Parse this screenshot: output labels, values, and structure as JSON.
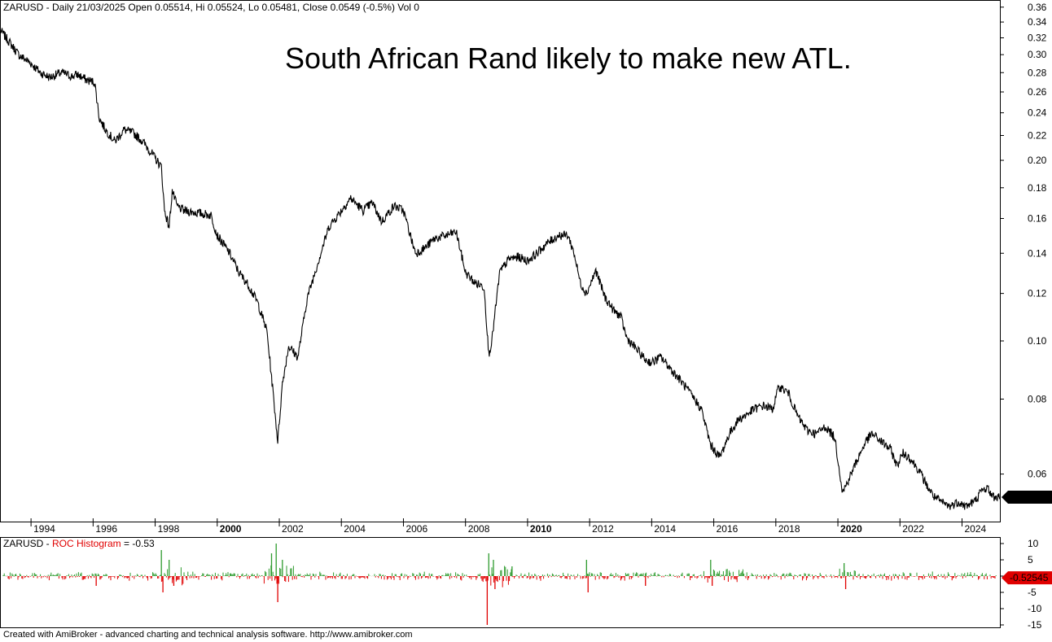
{
  "chart_data": [
    {
      "type": "line",
      "header": {
        "symbol": "ZARUSD",
        "text": " - Daily 21/03/2025 Open 0.05514, Hi 0.05524, Lo 0.05481, Close 0.0549 (-0.5%) Vol 0"
      },
      "annotation": "South African Rand likely to make new ATL.",
      "y_scale": "log",
      "ylim": [
        0.05,
        0.37
      ],
      "xlim": [
        1993.0,
        2025.22
      ],
      "y_ticks": [
        "0.36",
        "0.34",
        "0.32",
        "0.30",
        "0.28",
        "0.26",
        "0.24",
        "0.22",
        "0.20",
        "0.18",
        "0.16",
        "0.14",
        "0.12",
        "0.10",
        "0.08",
        "0.06"
      ],
      "x_ticks": [
        "1994",
        "1996",
        "1998",
        "2000",
        "2002",
        "2004",
        "2006",
        "2008",
        "2010",
        "2012",
        "2014",
        "2016",
        "2018",
        "2020",
        "2022",
        "2024"
      ],
      "x_ticks_bold": [
        "2000",
        "2010",
        "2020"
      ],
      "last_value_label": "0.0549",
      "series": [
        {
          "x": [
            1993.0,
            1993.3,
            1993.6,
            1994.0,
            1994.3,
            1994.6,
            1995.0,
            1995.3,
            1995.5,
            1995.8,
            1996.05,
            1996.2,
            1996.4,
            1996.7,
            1997.0,
            1997.3,
            1997.6,
            1997.9,
            1998.2,
            1998.3,
            1998.45,
            1998.55,
            1998.7,
            1998.9,
            1999.2,
            1999.5,
            1999.8,
            2000.0,
            2000.4,
            2000.7,
            2001.0,
            2001.3,
            2001.6,
            2001.8,
            2001.95,
            2002.1,
            2002.3,
            2002.6,
            2002.9,
            2003.3,
            2003.6,
            2004.0,
            2004.3,
            2004.7,
            2005.0,
            2005.3,
            2005.7,
            2006.0,
            2006.3,
            2006.4,
            2006.7,
            2007.0,
            2007.4,
            2007.7,
            2008.0,
            2008.3,
            2008.6,
            2008.75,
            2008.85,
            2009.1,
            2009.4,
            2009.7,
            2010.0,
            2010.3,
            2010.6,
            2011.0,
            2011.3,
            2011.5,
            2011.7,
            2011.9,
            2012.2,
            2012.5,
            2012.8,
            2013.0,
            2013.2,
            2013.5,
            2013.8,
            2014.0,
            2014.3,
            2014.6,
            2015.0,
            2015.3,
            2015.6,
            2015.9,
            2016.2,
            2016.5,
            2016.8,
            2017.0,
            2017.3,
            2017.6,
            2017.9,
            2018.1,
            2018.4,
            2018.7,
            2019.0,
            2019.3,
            2019.6,
            2019.9,
            2020.15,
            2020.3,
            2020.6,
            2020.9,
            2021.1,
            2021.4,
            2021.7,
            2021.9,
            2022.1,
            2022.3,
            2022.6,
            2022.9,
            2023.1,
            2023.3,
            2023.6,
            2023.9,
            2024.1,
            2024.4,
            2024.6,
            2024.8,
            2025.0,
            2025.22
          ],
          "y": [
            0.33,
            0.315,
            0.3,
            0.29,
            0.28,
            0.275,
            0.28,
            0.276,
            0.278,
            0.272,
            0.27,
            0.235,
            0.225,
            0.215,
            0.225,
            0.222,
            0.215,
            0.205,
            0.195,
            0.165,
            0.155,
            0.178,
            0.168,
            0.165,
            0.164,
            0.163,
            0.162,
            0.15,
            0.14,
            0.13,
            0.124,
            0.116,
            0.104,
            0.082,
            0.068,
            0.085,
            0.098,
            0.094,
            0.118,
            0.138,
            0.155,
            0.165,
            0.173,
            0.165,
            0.17,
            0.158,
            0.168,
            0.165,
            0.145,
            0.14,
            0.143,
            0.148,
            0.15,
            0.152,
            0.13,
            0.125,
            0.123,
            0.095,
            0.1,
            0.13,
            0.137,
            0.138,
            0.136,
            0.14,
            0.145,
            0.15,
            0.15,
            0.14,
            0.125,
            0.12,
            0.131,
            0.118,
            0.112,
            0.11,
            0.101,
            0.097,
            0.093,
            0.092,
            0.094,
            0.09,
            0.085,
            0.081,
            0.077,
            0.067,
            0.064,
            0.07,
            0.074,
            0.075,
            0.077,
            0.078,
            0.077,
            0.084,
            0.082,
            0.075,
            0.071,
            0.07,
            0.072,
            0.069,
            0.056,
            0.058,
            0.063,
            0.068,
            0.07,
            0.068,
            0.066,
            0.062,
            0.065,
            0.064,
            0.061,
            0.057,
            0.055,
            0.054,
            0.053,
            0.054,
            0.053,
            0.054,
            0.056,
            0.057,
            0.055,
            0.0549
          ]
        }
      ]
    },
    {
      "type": "bar",
      "header": {
        "symbol": "ZARUSD",
        "indicator": "ROC Histogram",
        "value": " = -0.53"
      },
      "ylim": [
        -16,
        12
      ],
      "y_ticks": [
        "10",
        "5",
        "0",
        "-5",
        "-10",
        "-15"
      ],
      "last_value_label": "-0.52545",
      "colors": {
        "positive": "#2e9b2e",
        "negative": "#e00000",
        "indicator_label": "#e00000"
      },
      "spikes": [
        {
          "x": 1998.2,
          "value": 8
        },
        {
          "x": 1998.25,
          "value": -5
        },
        {
          "x": 1998.45,
          "value": 5
        },
        {
          "x": 1998.6,
          "value": -3
        },
        {
          "x": 2001.75,
          "value": 7
        },
        {
          "x": 2001.9,
          "value": 10
        },
        {
          "x": 2001.95,
          "value": -8
        },
        {
          "x": 2002.1,
          "value": 5
        },
        {
          "x": 2008.7,
          "value": -15
        },
        {
          "x": 2008.75,
          "value": 7
        },
        {
          "x": 2008.9,
          "value": 5
        },
        {
          "x": 2008.95,
          "value": -4
        },
        {
          "x": 2011.9,
          "value": 5
        },
        {
          "x": 2011.95,
          "value": -5
        },
        {
          "x": 2015.9,
          "value": 5
        },
        {
          "x": 2015.95,
          "value": -3
        },
        {
          "x": 2020.2,
          "value": 4
        },
        {
          "x": 2020.25,
          "value": -4
        },
        {
          "x": 2009.5,
          "value": 3
        },
        {
          "x": 1996.1,
          "value": -3
        },
        {
          "x": 2013.8,
          "value": -3
        }
      ]
    }
  ],
  "footer": "Created with AmiBroker - advanced charting and technical analysis software. http://www.amibroker.com"
}
